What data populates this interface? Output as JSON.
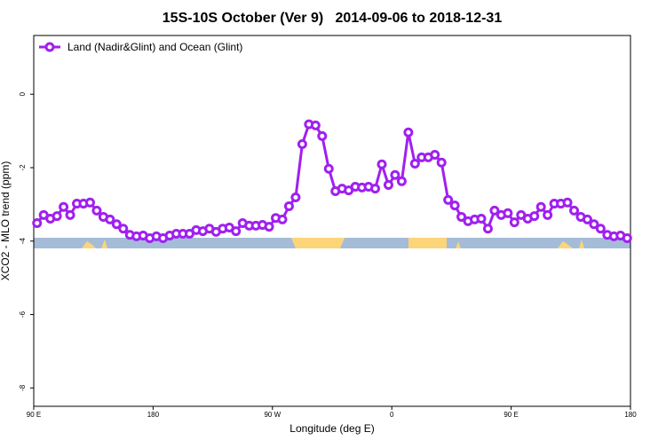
{
  "chart_data": {
    "type": "line",
    "title": "15S-10S October (Ver 9)   2014-09-06 to 2018-12-31",
    "xlabel": "Longitude (deg E)",
    "ylabel": "XCO2 - MLO trend (ppm)",
    "xlim": [
      90,
      540
    ],
    "ylim": [
      -8.5,
      1.6
    ],
    "xticks": [
      {
        "value": 90,
        "label": "90 E"
      },
      180,
      {
        "value": 270,
        "label": "90 W"
      },
      {
        "value": 360,
        "label": "0"
      },
      {
        "value": 450,
        "label": "90 E"
      },
      {
        "value": 540,
        "label": "180"
      }
    ],
    "yticks": [
      0,
      -2,
      -4,
      -6,
      -8
    ],
    "legend": "top-left",
    "series": [
      {
        "name": "Land (Nadir&Glint) and Ocean (Glint)",
        "color": "#a020f0",
        "x": [
          92.5,
          97.5,
          102.5,
          107.5,
          112.5,
          117.5,
          122.5,
          127.5,
          132.5,
          137.5,
          142.5,
          147.5,
          152.5,
          157.5,
          162.5,
          167.5,
          172.5,
          177.5,
          182.5,
          187.5,
          192.5,
          197.5,
          202.5,
          207.5,
          212.5,
          217.5,
          222.5,
          227.5,
          232.5,
          237.5,
          242.5,
          247.5,
          252.5,
          257.5,
          262.5,
          267.5,
          272.5,
          277.5,
          282.5,
          287.5,
          292.5,
          297.5,
          302.5,
          307.5,
          312.5,
          317.5,
          322.5,
          327.5,
          332.5,
          337.5,
          342.5,
          347.5,
          352.5,
          357.5,
          362.5,
          367.5,
          372.5,
          377.5,
          382.5,
          387.5,
          392.5,
          397.5,
          402.5,
          407.5,
          412.5,
          417.5,
          422.5,
          427.5,
          432.5,
          437.5,
          442.5,
          447.5,
          452.5,
          457.5,
          462.5,
          467.5,
          472.5,
          477.5,
          482.5,
          487.5,
          492.5,
          497.5,
          502.5,
          507.5,
          512.5,
          517.5,
          522.5,
          527.5,
          532.5,
          537.5
        ],
        "values": [
          -3.51,
          -3.29,
          -3.39,
          -3.32,
          -3.07,
          -3.29,
          -2.98,
          -2.98,
          -2.95,
          -3.17,
          -3.34,
          -3.41,
          -3.54,
          -3.66,
          -3.83,
          -3.87,
          -3.85,
          -3.92,
          -3.87,
          -3.92,
          -3.85,
          -3.8,
          -3.8,
          -3.8,
          -3.7,
          -3.73,
          -3.66,
          -3.75,
          -3.66,
          -3.63,
          -3.73,
          -3.51,
          -3.58,
          -3.58,
          -3.56,
          -3.61,
          -3.37,
          -3.41,
          -3.05,
          -2.81,
          -1.36,
          -0.82,
          -0.85,
          -1.14,
          -2.03,
          -2.64,
          -2.57,
          -2.62,
          -2.52,
          -2.54,
          -2.52,
          -2.57,
          -1.91,
          -2.47,
          -2.2,
          -2.37,
          -1.04,
          -1.89,
          -1.72,
          -1.72,
          -1.65,
          -1.86,
          -2.88,
          -3.03,
          -3.34,
          -3.46,
          -3.41,
          -3.39,
          -3.66,
          -3.17,
          -3.29,
          -3.24,
          -3.49,
          -3.29,
          -3.39,
          -3.32,
          -3.07,
          -3.29,
          -2.98,
          -2.98,
          -2.95,
          -3.17,
          -3.34,
          -3.41,
          -3.54,
          -3.66,
          -3.83,
          -3.87,
          -3.85,
          -3.92
        ]
      }
    ]
  }
}
